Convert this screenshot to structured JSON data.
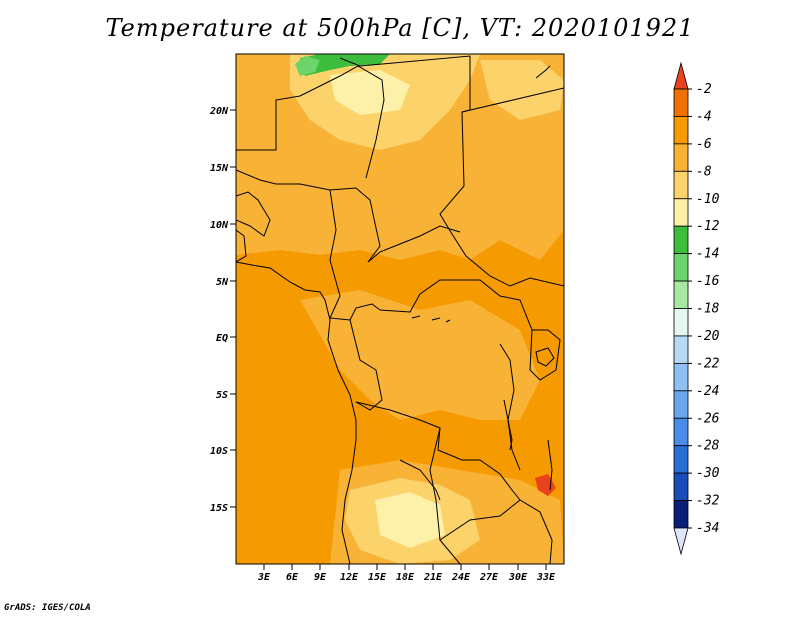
{
  "title": "Temperature at 500hPa [C], VT: 2020101921",
  "footer": "GrADS: IGES/COLA",
  "map": {
    "lat_labels": [
      "20N",
      "15N",
      "10N",
      "5N",
      "EQ",
      "5S",
      "10S",
      "15S"
    ],
    "lon_labels": [
      "3E",
      "6E",
      "9E",
      "12E",
      "15E",
      "18E",
      "21E",
      "24E",
      "27E",
      "30E",
      "33E"
    ]
  },
  "colorbar": {
    "labels": [
      "-2",
      "-4",
      "-6",
      "-8",
      "-10",
      "-12",
      "-14",
      "-16",
      "-18",
      "-20",
      "-22",
      "-24",
      "-26",
      "-28",
      "-30",
      "-32",
      "-34"
    ],
    "colors": [
      "#e8431d",
      "#f07000",
      "#f59a00",
      "#f8b236",
      "#fcd26a",
      "#fdf0a8",
      "#3cbd3c",
      "#6bd46b",
      "#a8e8a0",
      "#e6f7f0",
      "#b8d9f6",
      "#8ec0f2",
      "#6aa6ee",
      "#4a8de8",
      "#2a6ed8",
      "#1a4db8",
      "#0b1e78"
    ],
    "top_arrow_color": "#e8431d",
    "bottom_arrow_color": "#dde6fb"
  }
}
